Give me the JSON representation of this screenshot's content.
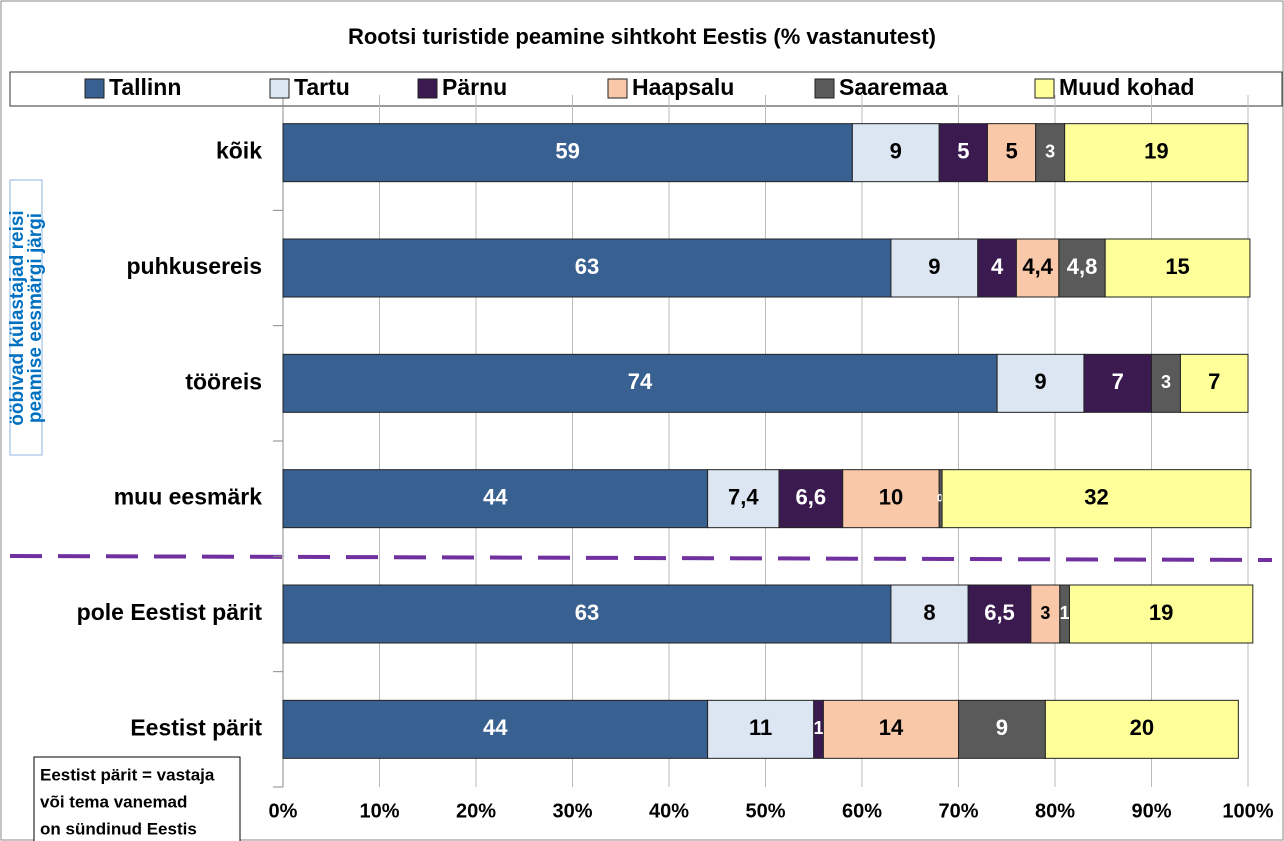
{
  "chart_data": {
    "type": "stacked_barh",
    "title": "Rootsi turistide peamine sihtkoht Eestis (% vastanutest)",
    "categories": [
      "kõik",
      "puhkusereis",
      "tööreis",
      "muu eesmärk",
      "pole Eestist pärit",
      "Eestist pärit"
    ],
    "series": [
      {
        "name": "Tallinn",
        "color": "#386090",
        "values": [
          59,
          63,
          74,
          44,
          63,
          44
        ]
      },
      {
        "name": "Tartu",
        "color": "#dce6f2",
        "values": [
          9,
          9,
          9,
          7.4,
          8,
          11
        ],
        "value_labels": [
          "9",
          "9",
          "9",
          "7,4",
          "8",
          "11"
        ]
      },
      {
        "name": "Pärnu",
        "color": "#3b1a50",
        "values": [
          5,
          4,
          7,
          6.6,
          6.5,
          1
        ],
        "value_labels": [
          "5",
          "4",
          "7",
          "6,6",
          "6,5",
          "1"
        ]
      },
      {
        "name": "Haapsalu",
        "color": "#f8c8a8",
        "values": [
          5,
          4.4,
          0,
          10,
          3,
          14
        ],
        "value_labels": [
          "5",
          "4,4",
          "0",
          "10",
          "3",
          "14"
        ]
      },
      {
        "name": "Saaremaa",
        "color": "#5a5a5a",
        "values": [
          3,
          4.8,
          3,
          0.3,
          1,
          9
        ],
        "value_labels": [
          "3",
          "4,8",
          "3",
          "0,3",
          "1",
          "9"
        ]
      },
      {
        "name": "Muud kohad",
        "color": "#ffff99",
        "values": [
          19,
          15,
          7,
          32,
          19,
          20
        ]
      }
    ],
    "xlim": [
      0,
      100
    ],
    "xticks": [
      {
        "value": 0,
        "label": "0%"
      },
      {
        "value": 10,
        "label": "10%"
      },
      {
        "value": 20,
        "label": "20%"
      },
      {
        "value": 30,
        "label": "30%"
      },
      {
        "value": 40,
        "label": "40%"
      },
      {
        "value": 50,
        "label": "50%"
      },
      {
        "value": 60,
        "label": "60%"
      },
      {
        "value": 70,
        "label": "70%"
      },
      {
        "value": 80,
        "label": "80%"
      },
      {
        "value": 90,
        "label": "90%"
      },
      {
        "value": 100,
        "label": "100%"
      }
    ],
    "grid": true,
    "legend": "top",
    "group_label": [
      "ööbivad külastajad reisi",
      "peamise eesmärgi järgi"
    ],
    "note": [
      "Eestist pärit = vastaja",
      "või tema vanemad",
      "on sündinud Eestis"
    ]
  }
}
